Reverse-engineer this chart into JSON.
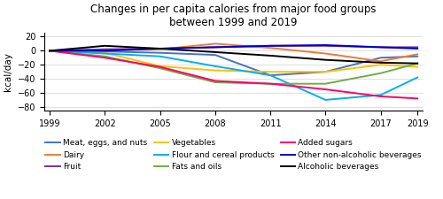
{
  "years": [
    1999,
    2002,
    2005,
    2008,
    2011,
    2014,
    2017,
    2019
  ],
  "title_line1": "Changes in per capita calories from major food groups",
  "title_line2": "between 1999 and 2019",
  "ylabel": "kcal/day",
  "ylim": [
    -85,
    25
  ],
  "yticks": [
    -80,
    -60,
    -40,
    -20,
    0,
    20
  ],
  "xticks": [
    1999,
    2002,
    2005,
    2008,
    2011,
    2014,
    2017,
    2019
  ],
  "series": [
    {
      "label": "Meat, eggs, and nuts",
      "color": "#4472C4",
      "values": [
        0,
        -1,
        -3,
        -6,
        -35,
        -30,
        -10,
        -8
      ]
    },
    {
      "label": "Dairy",
      "color": "#ED7D31",
      "values": [
        0,
        2,
        2,
        10,
        4,
        -4,
        -15,
        -5
      ]
    },
    {
      "label": "Fruit",
      "color": "#7030A0",
      "values": [
        0,
        2,
        3,
        5,
        7,
        7,
        5,
        5
      ]
    },
    {
      "label": "Vegetables",
      "color": "#FFC000",
      "values": [
        0,
        -3,
        -22,
        -28,
        -30,
        -30,
        -20,
        -23
      ]
    },
    {
      "label": "Flour and cereal products",
      "color": "#00B0F0",
      "values": [
        0,
        -4,
        -8,
        -22,
        -35,
        -70,
        -63,
        -38
      ]
    },
    {
      "label": "Fats and oils",
      "color": "#70AD47",
      "values": [
        0,
        -8,
        -25,
        -45,
        -47,
        -47,
        -32,
        -18
      ]
    },
    {
      "label": "Added sugars",
      "color": "#FF0066",
      "values": [
        0,
        -10,
        -23,
        -43,
        -47,
        -55,
        -65,
        -68
      ]
    },
    {
      "label": "Other non-alcoholic beverages",
      "color": "#0000CD",
      "values": [
        0,
        0,
        3,
        5,
        7,
        8,
        5,
        3
      ]
    },
    {
      "label": "Alcoholic beverages",
      "color": "#000000",
      "values": [
        0,
        7,
        3,
        -2,
        -7,
        -13,
        -17,
        -18
      ]
    }
  ],
  "legend_order": [
    0,
    1,
    2,
    3,
    4,
    5,
    6,
    7,
    8
  ],
  "legend_ncol": 3,
  "legend_fontsize": 6.5,
  "title_fontsize": 8.5,
  "axis_fontsize": 7.5,
  "tick_fontsize": 7,
  "linewidth": 1.4,
  "background_color": "#ffffff",
  "grid_color": "#d0d0d0",
  "figsize": [
    5.0,
    2.25
  ],
  "dpi": 100
}
